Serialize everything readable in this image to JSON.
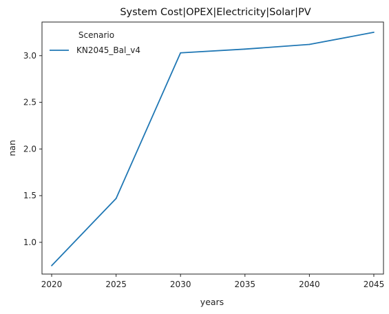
{
  "chart_data": {
    "type": "line",
    "title": "System Cost|OPEX|Electricity|Solar|PV",
    "xlabel": "years",
    "ylabel": "nan",
    "x": [
      2020,
      2025,
      2030,
      2035,
      2040,
      2045
    ],
    "xticks": [
      2020,
      2025,
      2030,
      2035,
      2040,
      2045
    ],
    "yticks": [
      1.0,
      1.5,
      2.0,
      2.5,
      3.0
    ],
    "xlim": [
      2019.25,
      2045.75
    ],
    "ylim": [
      0.66,
      3.36
    ],
    "grid": false,
    "legend": {
      "title": "Scenario",
      "placement": "top-left"
    },
    "series": [
      {
        "name": "KN2045_Bal_v4",
        "color": "#1f77b4",
        "values": [
          0.75,
          1.47,
          3.03,
          3.07,
          3.12,
          3.25
        ]
      }
    ]
  }
}
